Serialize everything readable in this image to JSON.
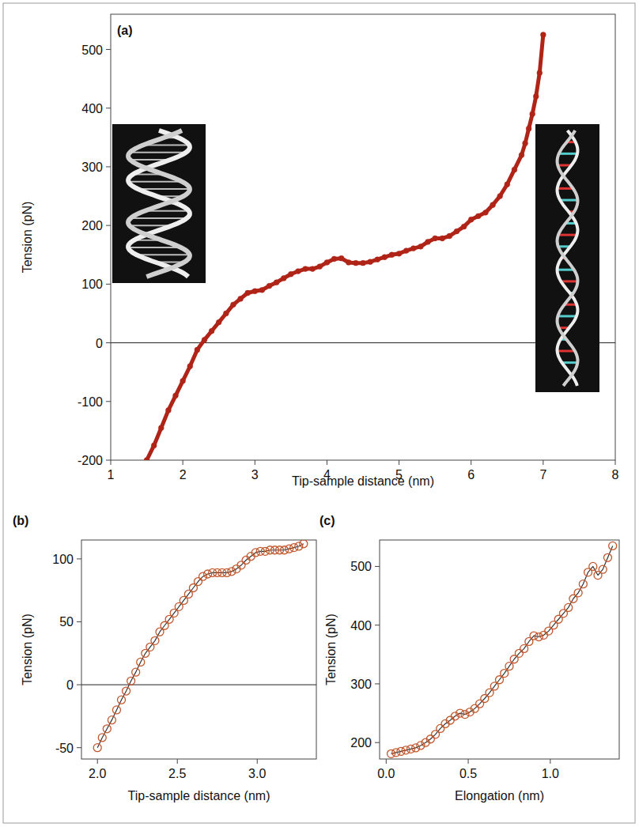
{
  "chart_data": [
    {
      "type": "scatter",
      "panel": "(a)",
      "x_label": "Tip-sample distance (nm)",
      "y_label": "Tension (pN)",
      "xlim": [
        1,
        8
      ],
      "ylim": [
        -200,
        560
      ],
      "xticks": [
        1,
        2,
        3,
        4,
        5,
        6,
        7,
        8
      ],
      "yticks": [
        -200,
        -100,
        0,
        100,
        200,
        300,
        400,
        500
      ],
      "hline": 0,
      "x": [
        1.5,
        1.6,
        1.7,
        1.8,
        1.9,
        2.0,
        2.1,
        2.2,
        2.3,
        2.4,
        2.5,
        2.6,
        2.7,
        2.8,
        2.9,
        3.0,
        3.1,
        3.2,
        3.3,
        3.4,
        3.5,
        3.6,
        3.7,
        3.8,
        3.9,
        4.0,
        4.1,
        4.2,
        4.3,
        4.4,
        4.5,
        4.6,
        4.7,
        4.8,
        4.9,
        5.0,
        5.1,
        5.2,
        5.3,
        5.4,
        5.5,
        5.6,
        5.7,
        5.8,
        5.9,
        6.0,
        6.1,
        6.2,
        6.3,
        6.4,
        6.5,
        6.6,
        6.7,
        6.75,
        6.8,
        6.85,
        6.9,
        6.95,
        7.0
      ],
      "series": [
        {
          "name": "Tension",
          "color": "#b02418",
          "marker": "filled_circle",
          "line_style": "solid",
          "values": [
            -200,
            -175,
            -145,
            -115,
            -90,
            -65,
            -40,
            -12,
            5,
            20,
            35,
            50,
            65,
            75,
            85,
            88,
            90,
            97,
            103,
            110,
            117,
            122,
            126,
            126,
            130,
            137,
            143,
            144,
            137,
            136,
            136,
            138,
            142,
            146,
            150,
            152,
            157,
            161,
            164,
            172,
            178,
            178,
            182,
            190,
            198,
            210,
            216,
            222,
            235,
            250,
            270,
            295,
            320,
            340,
            365,
            390,
            420,
            460,
            525
          ]
        }
      ]
    },
    {
      "type": "scatter",
      "panel": "(b)",
      "x_label": "Tip-sample distance (nm)",
      "y_label": "Tension (pN)",
      "xlim": [
        1.9,
        3.37
      ],
      "ylim": [
        -59,
        115
      ],
      "xticks": [
        {
          "value": 2,
          "label": "2.0"
        },
        {
          "value": 2.5,
          "label": "2.5"
        },
        {
          "value": 3,
          "label": "3.0"
        }
      ],
      "yticks": [
        -50,
        0,
        50,
        100
      ],
      "hline": 0,
      "x": [
        2.0,
        2.03,
        2.06,
        2.09,
        2.12,
        2.15,
        2.18,
        2.21,
        2.24,
        2.27,
        2.3,
        2.33,
        2.36,
        2.39,
        2.42,
        2.45,
        2.48,
        2.51,
        2.54,
        2.57,
        2.6,
        2.63,
        2.66,
        2.69,
        2.72,
        2.75,
        2.78,
        2.81,
        2.84,
        2.87,
        2.9,
        2.93,
        2.96,
        2.99,
        3.02,
        3.05,
        3.08,
        3.11,
        3.14,
        3.17,
        3.2,
        3.23,
        3.26,
        3.29
      ],
      "series": [
        {
          "name": "Tension",
          "color": "#c0582e",
          "marker": "open_circle",
          "line_style": "solid",
          "values": [
            -50,
            -42,
            -35,
            -28,
            -20,
            -12,
            -5,
            3,
            10,
            18,
            25,
            30,
            35,
            42,
            47,
            52,
            57,
            62,
            67,
            72,
            77,
            82,
            86,
            88,
            89,
            89,
            89,
            89,
            90,
            92,
            95,
            99,
            102,
            105,
            106,
            106,
            107,
            107,
            107,
            107,
            108,
            109,
            110,
            112
          ]
        }
      ]
    },
    {
      "type": "scatter",
      "panel": "(c)",
      "x_label": "Elongation (nm)",
      "y_label": "Tension (pN)",
      "xlim": [
        -0.04,
        1.42
      ],
      "ylim": [
        172,
        545
      ],
      "xticks": [
        {
          "value": 0,
          "label": "0.0"
        },
        {
          "value": 0.5,
          "label": "0.5"
        },
        {
          "value": 1,
          "label": "1.0"
        }
      ],
      "yticks": [
        200,
        300,
        400,
        500
      ],
      "x": [
        0.03,
        0.06,
        0.09,
        0.12,
        0.15,
        0.18,
        0.21,
        0.24,
        0.27,
        0.3,
        0.33,
        0.36,
        0.39,
        0.42,
        0.45,
        0.48,
        0.51,
        0.54,
        0.57,
        0.6,
        0.63,
        0.66,
        0.69,
        0.72,
        0.75,
        0.78,
        0.81,
        0.84,
        0.87,
        0.9,
        0.93,
        0.96,
        0.99,
        1.02,
        1.05,
        1.08,
        1.11,
        1.14,
        1.17,
        1.2,
        1.23,
        1.26,
        1.29,
        1.32,
        1.35,
        1.38
      ],
      "series": [
        {
          "name": "Tension",
          "color": "#c0582e",
          "marker": "open_circle",
          "line_style": "solid",
          "values": [
            181,
            183,
            185,
            187,
            189,
            191,
            195,
            200,
            206,
            214,
            224,
            232,
            238,
            245,
            250,
            248,
            252,
            258,
            266,
            275,
            285,
            296,
            307,
            318,
            330,
            342,
            352,
            360,
            372,
            382,
            380,
            383,
            390,
            400,
            410,
            420,
            430,
            445,
            455,
            470,
            490,
            500,
            485,
            495,
            515,
            535
          ]
        }
      ]
    }
  ]
}
